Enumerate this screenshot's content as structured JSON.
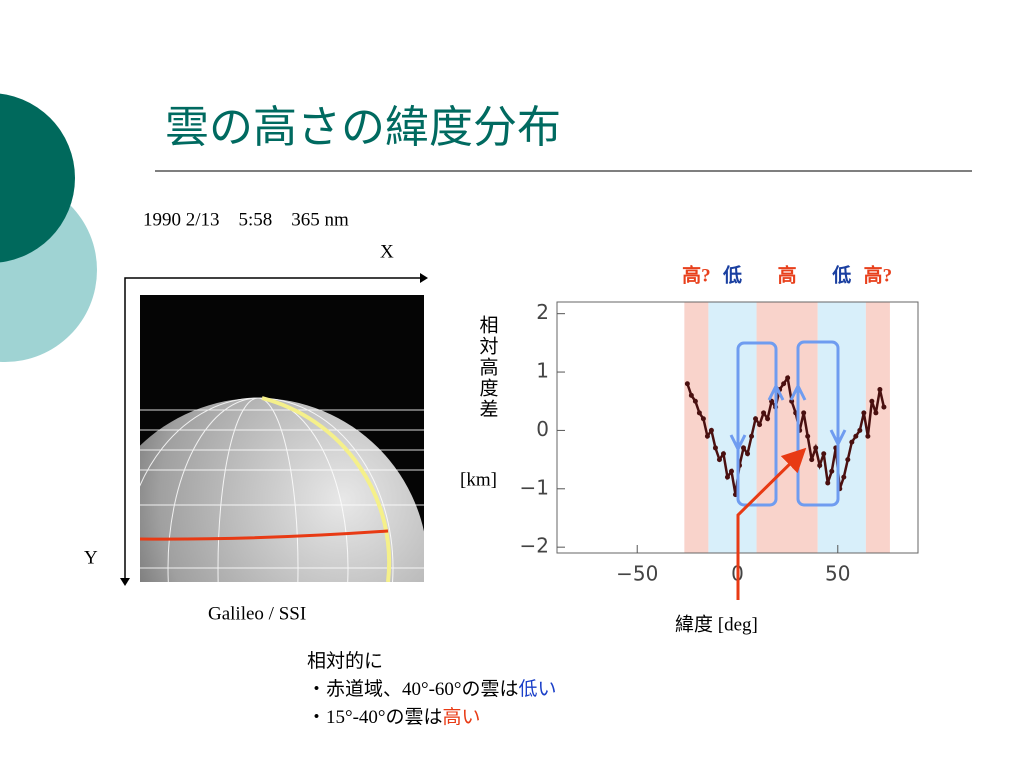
{
  "slide": {
    "title": "雲の高さの緯度分布",
    "image_caption": "1990 2/13　5:58　365 nm",
    "x_axis_label": "X",
    "y_axis_label": "Y",
    "image_credit": "Galileo / SSI",
    "notes": [
      [
        "相対的に"
      ],
      [
        "・赤道域、40°-60°の雲は",
        "低い"
      ],
      [
        "・15°-40°の雲は",
        "高い"
      ]
    ]
  },
  "chart_data": {
    "type": "line",
    "ylabel": "相対高度差",
    "yunit": "[km]",
    "xlabel": "緯度 [deg]",
    "x": [
      -25,
      -23,
      -21,
      -19,
      -17,
      -15,
      -13,
      -11,
      -9,
      -7,
      -5,
      -3,
      -1,
      1,
      3,
      5,
      7,
      9,
      11,
      13,
      15,
      17,
      19,
      21,
      23,
      25,
      27,
      29,
      31,
      33,
      35,
      37,
      39,
      41,
      43,
      45,
      47,
      49,
      51,
      53,
      55,
      57,
      59,
      61,
      63,
      65,
      67,
      69,
      71,
      73
    ],
    "series": [
      {
        "color": "#4a1010",
        "values": [
          0.8,
          0.6,
          0.5,
          0.3,
          0.2,
          -0.1,
          0.0,
          -0.3,
          -0.5,
          -0.4,
          -0.8,
          -0.7,
          -1.1,
          -0.6,
          -0.3,
          -0.4,
          -0.1,
          0.2,
          0.1,
          0.3,
          0.2,
          0.5,
          0.4,
          0.7,
          0.8,
          0.9,
          0.5,
          0.3,
          0.0,
          0.3,
          -0.1,
          -0.5,
          -0.3,
          -0.6,
          -0.4,
          -0.9,
          -0.7,
          -0.3,
          -1.0,
          -0.8,
          -0.5,
          -0.2,
          -0.1,
          0.0,
          0.3,
          -0.1,
          0.5,
          0.3,
          0.7,
          0.4
        ]
      }
    ],
    "xlim": [
      -90,
      90
    ],
    "xticks": [
      {
        "value": -50,
        "label": "−50"
      },
      0,
      50
    ],
    "ylim": [
      -2.1,
      2.2
    ],
    "yticks": [
      2,
      1,
      0,
      {
        "value": -1,
        "label": "−1"
      },
      {
        "value": -2,
        "label": "−2"
      }
    ],
    "bands": [
      {
        "label": "高?",
        "from": -26.5,
        "to": -14.5,
        "color": "#f9d3cb",
        "label_color": "#e8401c"
      },
      {
        "label": "低",
        "from": -14.5,
        "to": 9.5,
        "color": "#d8effa",
        "label_color": "#1a3fa0"
      },
      {
        "label": "高",
        "from": 9.5,
        "to": 40,
        "color": "#f9d3cb",
        "label_color": "#e8401c"
      },
      {
        "label": "低",
        "from": 40,
        "to": 64,
        "color": "#d8effa",
        "label_color": "#1a3fa0"
      },
      {
        "label": "高?",
        "from": 64,
        "to": 76,
        "color": "#f9d3cb",
        "label_color": "#e8401c"
      }
    ]
  }
}
